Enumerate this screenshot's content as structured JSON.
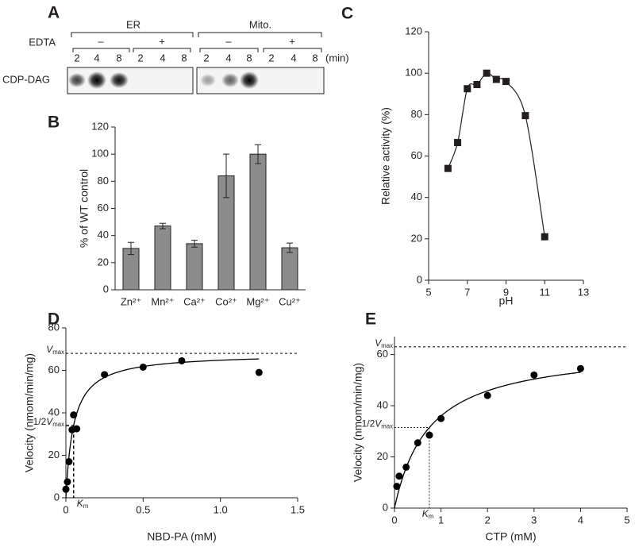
{
  "gel": {
    "label": "A",
    "groups": [
      "ER",
      "Mito."
    ],
    "edta_label": "EDTA",
    "edta_states": [
      "–",
      "+"
    ],
    "times": [
      "2",
      "4",
      "8"
    ],
    "time_unit": "(min)",
    "row_label": "CDP-DAG"
  },
  "chart_data": [
    {
      "type": "bar",
      "label": "B",
      "y_label": "% of WT control",
      "categories": [
        "Zn²⁺",
        "Mn²⁺",
        "Ca²⁺",
        "Co²⁺",
        "Mg²⁺",
        "Cu²⁺"
      ],
      "values": [
        30.5,
        47,
        34,
        84,
        100,
        31
      ],
      "errors": [
        4.5,
        2,
        2.5,
        16,
        7,
        3.5
      ],
      "color": "#8c8c8c",
      "ylim": [
        0,
        120
      ],
      "yticks": [
        0,
        20,
        40,
        60,
        80,
        100,
        120
      ]
    },
    {
      "type": "line",
      "label": "C",
      "x_label": "pH",
      "y_label": "Relative activity (%)",
      "x": [
        6,
        6.5,
        7,
        7.5,
        8,
        8.5,
        9,
        10,
        11
      ],
      "values": [
        54,
        66.5,
        92.5,
        94.5,
        100,
        97,
        96,
        79.5,
        21
      ],
      "color": "#231f20",
      "xlim": [
        5,
        13
      ],
      "xticks": [
        5,
        7,
        9,
        11,
        13
      ],
      "ylim": [
        0,
        120
      ],
      "yticks": [
        0,
        20,
        40,
        60,
        80,
        100,
        120
      ]
    },
    {
      "type": "scatter",
      "label": "D",
      "x_label": "NBD-PA (mM)",
      "y_label": "Velocity (nmom/min/mg)",
      "x": [
        0,
        0.01,
        0.02,
        0.04,
        0.05,
        0.07,
        0.25,
        0.5,
        0.75,
        1.25
      ],
      "values": [
        4,
        7.5,
        17,
        32,
        39,
        32.5,
        58,
        61.5,
        64.5,
        59
      ],
      "color": "#000000",
      "vmax": 68,
      "km": 0.05,
      "vmax_label": {
        "italic": "V",
        "sub": "max"
      },
      "half_label": {
        "prefix": "1/2",
        "italic": "V",
        "sub": "max"
      },
      "km_label": {
        "italic": "K",
        "sub": "m"
      },
      "xlim": [
        0,
        1.5
      ],
      "xticks": [
        0,
        0.5,
        {
          "value": 1,
          "label": "1.0"
        },
        1.5
      ],
      "ylim": [
        0,
        80
      ],
      "yticks": [
        0,
        20,
        40,
        60,
        80
      ]
    },
    {
      "type": "scatter",
      "label": "E",
      "x_label": "CTP (mM)",
      "y_label": "Velocity (nmom/min/mg)",
      "x": [
        0.05,
        0.1,
        0.25,
        0.5,
        0.75,
        1,
        2,
        3,
        4
      ],
      "values": [
        8.5,
        12.5,
        16,
        25.5,
        28.5,
        35,
        44,
        52,
        54.5
      ],
      "color": "#000000",
      "vmax": 63,
      "km": 0.75,
      "vmax_label": {
        "italic": "V",
        "sub": "max"
      },
      "half_label": {
        "prefix": "1/2",
        "italic": "V",
        "sub": "max"
      },
      "km_label": {
        "italic": "K",
        "sub": "m"
      },
      "xlim": [
        0,
        5
      ],
      "xticks": [
        0,
        1,
        2,
        3,
        4,
        5
      ],
      "ylim": [
        0,
        67
      ],
      "yticks": [
        0,
        20,
        40,
        60
      ]
    }
  ]
}
